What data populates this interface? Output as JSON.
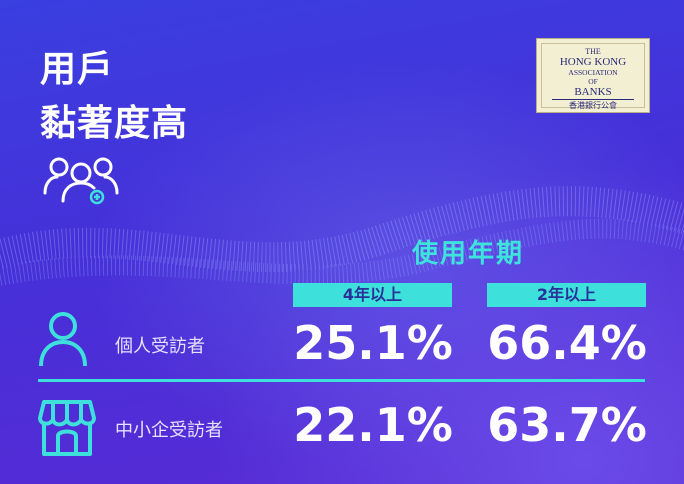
{
  "title": {
    "line1": "用戶",
    "line2": "黏著度高"
  },
  "logo": {
    "line1": "THE",
    "line2": "HONG KONG",
    "line3": "ASSOCIATION",
    "line4": "OF",
    "line5": "BANKS",
    "line6": "香港銀行公會"
  },
  "period_heading": "使用年期",
  "columns": [
    "4年以上",
    "2年以上"
  ],
  "rows": [
    {
      "label": "個人受訪者",
      "icon": "person-icon",
      "values": [
        "25.1%",
        "66.4%"
      ]
    },
    {
      "label": "中小企受訪者",
      "icon": "store-icon",
      "values": [
        "22.1%",
        "63.7%"
      ]
    }
  ],
  "colors": {
    "accent": "#3ee0dc",
    "background": "#4630d8"
  }
}
